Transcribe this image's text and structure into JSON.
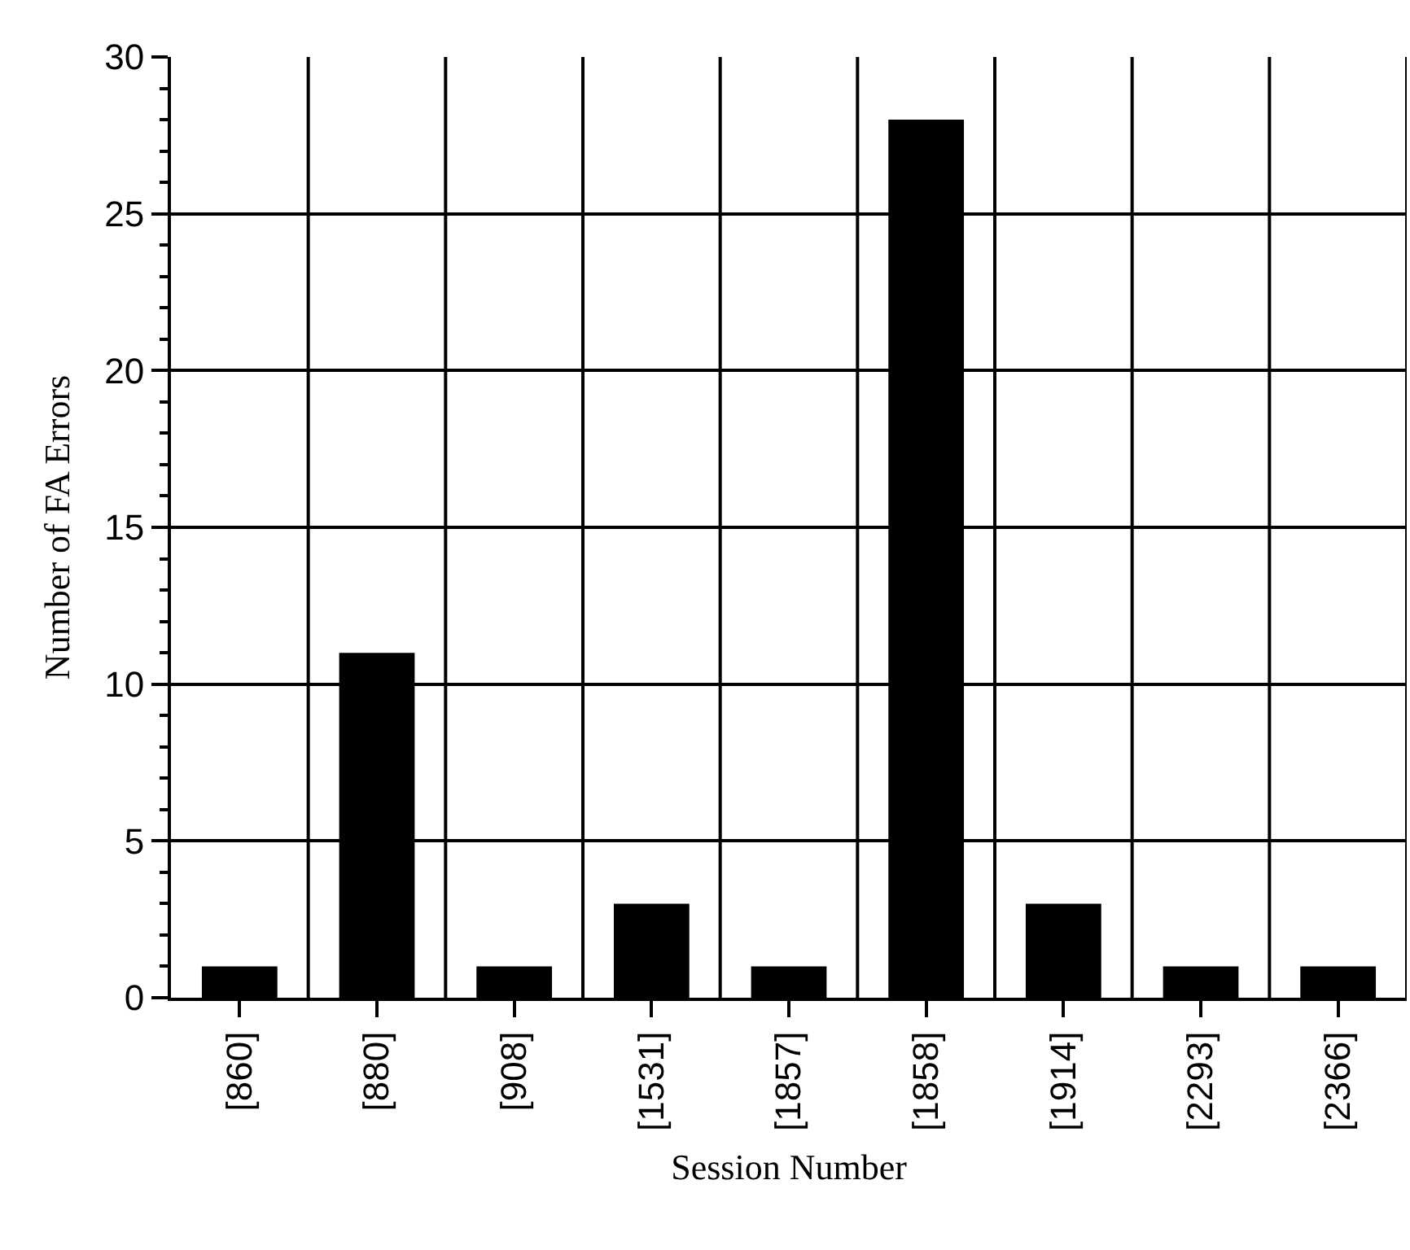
{
  "chart_data": {
    "type": "bar",
    "xlabel": "Session Number",
    "ylabel": "Number of FA Errors",
    "categories": [
      "[860]",
      "[880]",
      "[908]",
      "[1531]",
      "[1857]",
      "[1858]",
      "[1914]",
      "[2293]",
      "[2366]"
    ],
    "values": [
      1,
      11,
      1,
      3,
      1,
      28,
      3,
      1,
      1
    ],
    "color": "#000000",
    "ylim": [
      0,
      30
    ],
    "yticks": [
      0,
      5,
      10,
      15,
      20,
      25,
      30
    ],
    "grid": true,
    "legend": false
  }
}
